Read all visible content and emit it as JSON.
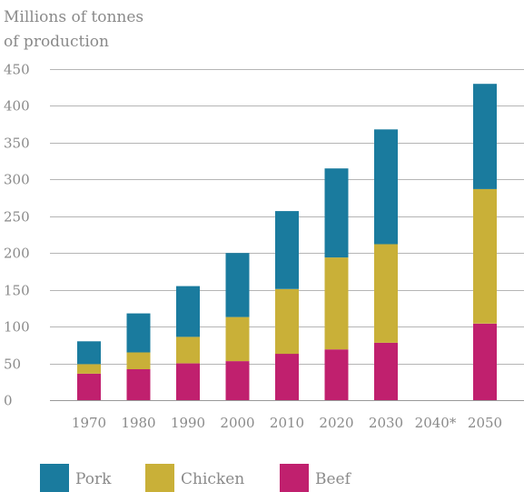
{
  "chart_data": {
    "type": "bar",
    "stacked": true,
    "ylabel_lines": [
      "Millions of tonnes",
      "of production"
    ],
    "categories": [
      "1970",
      "1980",
      "1990",
      "2000",
      "2010",
      "2020",
      "2030",
      "2040*",
      "2050"
    ],
    "ylim": [
      0,
      450
    ],
    "yticks": [
      0,
      50,
      100,
      150,
      200,
      250,
      300,
      350,
      400,
      450
    ],
    "grid": true,
    "legend_position": "bottom",
    "series": [
      {
        "name": "Beef",
        "color": "#c0206e",
        "values": [
          36,
          42,
          50,
          53,
          63,
          69,
          78,
          null,
          104
        ]
      },
      {
        "name": "Chicken",
        "color": "#c9b038",
        "values": [
          13,
          23,
          36,
          60,
          88,
          125,
          134,
          null,
          183
        ]
      },
      {
        "name": "Pork",
        "color": "#1a7b9e",
        "values": [
          31,
          53,
          69,
          87,
          106,
          121,
          156,
          null,
          143
        ]
      }
    ],
    "legend_order": [
      "Pork",
      "Chicken",
      "Beef"
    ]
  }
}
